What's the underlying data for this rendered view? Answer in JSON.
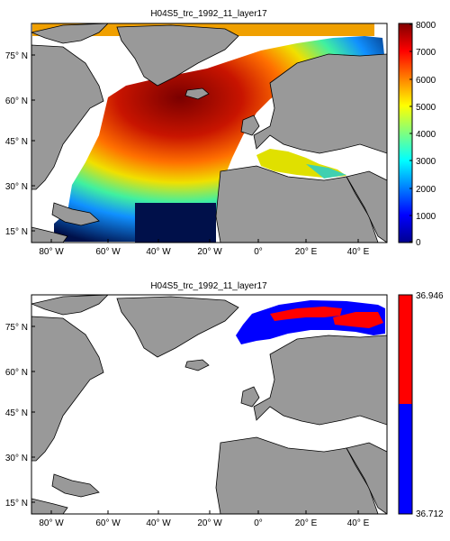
{
  "chart_data": [
    {
      "type": "heatmap",
      "title": "H04S5_trc_1992_11_layer17",
      "xticks": [
        "80° W",
        "60° W",
        "40° W",
        "20° W",
        "0°",
        "20° E",
        "40° E"
      ],
      "yticks": [
        "75° N",
        "60° N",
        "45° N",
        "30° N",
        "15° N"
      ],
      "colorbar": {
        "colormap": "jet",
        "ticks": [
          "8000",
          "7000",
          "6000",
          "5000",
          "4000",
          "3000",
          "2000",
          "1000",
          "0"
        ],
        "range": [
          0,
          8000
        ]
      }
    },
    {
      "type": "heatmap",
      "title": "H04S5_trc_1992_11_layer17",
      "xticks": [
        "80° W",
        "60° W",
        "40° W",
        "20° W",
        "0°",
        "20° E",
        "40° E"
      ],
      "yticks": [
        "75° N",
        "60° N",
        "45° N",
        "30° N",
        "15° N"
      ],
      "colorbar": {
        "colormap": "two-level",
        "top_label": "36.946",
        "bottom_label": "36.712",
        "colors": [
          "#ff0000",
          "#0000ff"
        ]
      }
    }
  ],
  "colors": {
    "land": "#999999",
    "ocean": "#ffffff",
    "frame": "#000000"
  }
}
